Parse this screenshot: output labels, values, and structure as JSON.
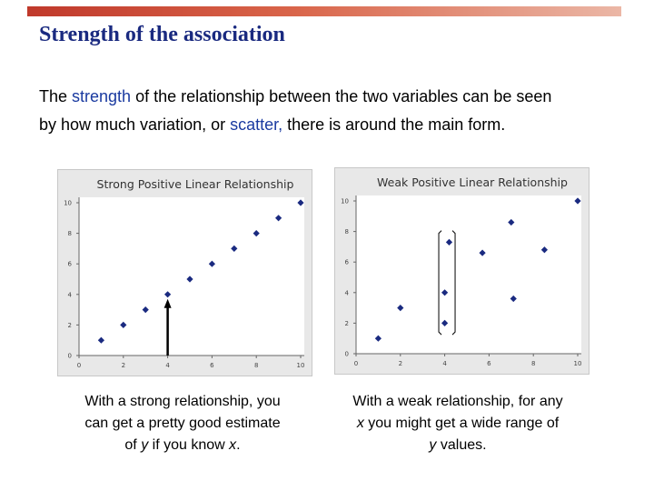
{
  "slide": {
    "title": "Strength of the association",
    "line1": {
      "pre": "The ",
      "kw": "strength",
      "post": " of the relationship between the two variables can be seen"
    },
    "line2": {
      "pre": "by how much variation, or ",
      "kw": "scatter,",
      "post": " there is around the main form."
    },
    "caption_left": {
      "l1": "With a strong relationship, you",
      "l2": "can get a pretty good estimate",
      "l3_pre": "of ",
      "l3_var": "y",
      "l3_mid": " if you know ",
      "l3_var2": "x",
      "l3_post": "."
    },
    "caption_right": {
      "l1": "With a weak relationship, for any",
      "l2_var": "x",
      "l2_post": " you might get a wide range of",
      "l3_var": "y",
      "l3_post": " values."
    },
    "colors": {
      "accent": "#c0392b",
      "title": "#1a2a80",
      "keyword": "#1a3aa0",
      "marker": "#1a2a80"
    }
  },
  "chart_data": [
    {
      "type": "scatter",
      "title": "Strong Positive Linear Relationship",
      "xlim": [
        0,
        10
      ],
      "ylim": [
        0,
        10
      ],
      "x_ticks": [
        "0",
        "2",
        "4",
        "6",
        "8",
        "10"
      ],
      "y_ticks": [
        "0",
        "2",
        "4",
        "6",
        "8",
        "10"
      ],
      "grid": false,
      "series": [
        {
          "x": [
            1,
            2,
            3,
            4,
            5,
            6,
            7,
            8,
            9,
            10
          ],
          "y": [
            1,
            2,
            3,
            4,
            5,
            6,
            7,
            8,
            9,
            10
          ]
        }
      ],
      "annotations": [
        {
          "kind": "arrow",
          "x": 4,
          "from_y": 0,
          "to_y": 4
        }
      ]
    },
    {
      "type": "scatter",
      "title": "Weak Positive Linear Relationship",
      "xlim": [
        0,
        10
      ],
      "ylim": [
        0,
        10
      ],
      "x_ticks": [
        "0",
        "2",
        "4",
        "6",
        "8",
        "10"
      ],
      "y_ticks": [
        "0",
        "2",
        "4",
        "6",
        "8",
        "10"
      ],
      "grid": false,
      "series": [
        {
          "x": [
            1,
            2,
            4,
            4,
            4.2,
            5.7,
            7,
            7.1,
            8.5,
            10
          ],
          "y": [
            1,
            3,
            2,
            4,
            7.3,
            6.6,
            8.6,
            3.6,
            6.8,
            10
          ]
        }
      ],
      "annotations": [
        {
          "kind": "bracket",
          "x": 4.1,
          "y_from": 1.6,
          "y_to": 7.7
        }
      ]
    }
  ]
}
